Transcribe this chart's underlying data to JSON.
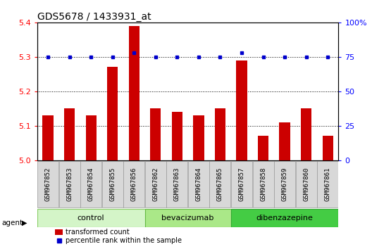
{
  "title": "GDS5678 / 1433931_at",
  "samples": [
    "GSM967852",
    "GSM967853",
    "GSM967854",
    "GSM967855",
    "GSM967856",
    "GSM967862",
    "GSM967863",
    "GSM967864",
    "GSM967865",
    "GSM967857",
    "GSM967858",
    "GSM967859",
    "GSM967860",
    "GSM967861"
  ],
  "transformed_count": [
    5.13,
    5.15,
    5.13,
    5.27,
    5.39,
    5.15,
    5.14,
    5.13,
    5.15,
    5.29,
    5.07,
    5.11,
    5.15,
    5.07
  ],
  "percentile_rank": [
    75,
    75,
    75,
    75,
    78,
    75,
    75,
    75,
    75,
    78,
    75,
    75,
    75,
    75
  ],
  "groups": [
    {
      "label": "control",
      "count": 5,
      "color": "#d4f5c8",
      "border": "#88cc66"
    },
    {
      "label": "bevacizumab",
      "count": 4,
      "color": "#aae888",
      "border": "#66bb44"
    },
    {
      "label": "dibenzazepine",
      "count": 5,
      "color": "#44cc44",
      "border": "#33aa33"
    }
  ],
  "bar_color": "#cc0000",
  "dot_color": "#0000cc",
  "ylim_left": [
    5.0,
    5.4
  ],
  "ylim_right": [
    0,
    100
  ],
  "yticks_left": [
    5.0,
    5.1,
    5.2,
    5.3,
    5.4
  ],
  "yticks_right": [
    0,
    25,
    50,
    75,
    100
  ],
  "ytick_labels_right": [
    "0",
    "25",
    "50",
    "75",
    "100%"
  ],
  "bar_width": 0.5,
  "background_color": "#ffffff",
  "plot_bg_color": "#ffffff",
  "sample_cell_color": "#d8d8d8",
  "sample_cell_border": "#999999",
  "agent_label": "agent",
  "legend1_label": "transformed count",
  "legend2_label": "percentile rank within the sample",
  "title_fontsize": 10,
  "axis_fontsize": 8,
  "sample_fontsize": 6.5,
  "group_fontsize": 8
}
